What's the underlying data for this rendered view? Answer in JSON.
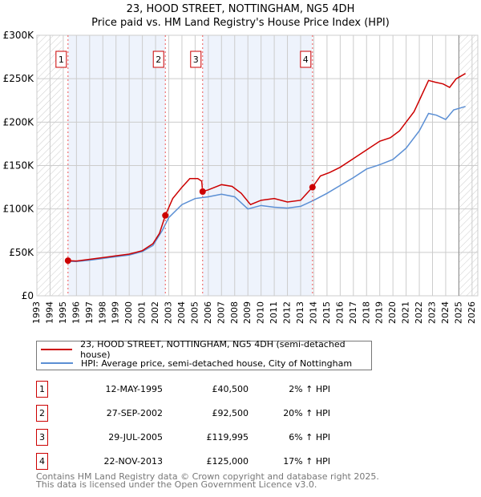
{
  "title": "23, HOOD STREET, NOTTINGHAM, NG5 4DH",
  "subtitle": "Price paid vs. HM Land Registry's House Price Index (HPI)",
  "chart_data": {
    "type": "line",
    "title": "23, HOOD STREET, NOTTINGHAM, NG5 4DH — Price paid vs. HM Land Registry's House Price Index (HPI)",
    "xlim": [
      1993,
      2026.5
    ],
    "ylim": [
      0,
      300000
    ],
    "yticks": [
      {
        "v": 0,
        "label": "£0"
      },
      {
        "v": 50000,
        "label": "£50K"
      },
      {
        "v": 100000,
        "label": "£100K"
      },
      {
        "v": 150000,
        "label": "£150K"
      },
      {
        "v": 200000,
        "label": "£200K"
      },
      {
        "v": 250000,
        "label": "£250K"
      },
      {
        "v": 300000,
        "label": "£300K"
      }
    ],
    "xticks": [
      "1993",
      "1994",
      "1995",
      "1996",
      "1997",
      "1998",
      "1999",
      "2000",
      "2001",
      "2002",
      "2003",
      "2004",
      "2005",
      "2006",
      "2007",
      "2008",
      "2009",
      "2010",
      "2011",
      "2012",
      "2013",
      "2014",
      "2015",
      "2016",
      "2017",
      "2018",
      "2019",
      "2020",
      "2021",
      "2022",
      "2023",
      "2024",
      "2025",
      "2026"
    ],
    "grid": true,
    "series": [
      {
        "name": "23, HOOD STREET, NOTTINGHAM, NG5 4DH (semi-detached house)",
        "color": "#cc0000",
        "x": [
          1995.36,
          1996,
          1997,
          1998,
          1999,
          2000,
          2001,
          2001.8,
          2002.3,
          2002.74,
          2003.3,
          2004,
          2004.6,
          2005.2,
          2005.5,
          2005.57,
          2006,
          2007,
          2007.8,
          2008.5,
          2009.2,
          2010,
          2011,
          2012,
          2013,
          2013.9,
          2014.5,
          2015.2,
          2016,
          2017,
          2018,
          2019,
          2019.8,
          2020.5,
          2021,
          2021.6,
          2022,
          2022.7,
          2023.2,
          2023.8,
          2024.3,
          2024.8,
          2025.5
        ],
        "y": [
          40500,
          40000,
          42000,
          44000,
          46000,
          48000,
          52000,
          60000,
          72000,
          92500,
          112000,
          125000,
          135000,
          135000,
          132000,
          119995,
          122000,
          128000,
          126000,
          118000,
          105000,
          110000,
          112000,
          108000,
          110000,
          125000,
          138000,
          142000,
          148000,
          158000,
          168000,
          178000,
          182000,
          190000,
          200000,
          212000,
          225000,
          248000,
          246000,
          244000,
          240000,
          250000,
          256000
        ]
      },
      {
        "name": "HPI: Average price, semi-detached house, City of Nottingham",
        "color": "#5b8fd4",
        "x": [
          1995.36,
          1996,
          1997,
          1998,
          1999,
          2000,
          2001,
          2001.8,
          2002.5,
          2003,
          2004,
          2005,
          2006,
          2007,
          2008,
          2009,
          2010,
          2011,
          2012,
          2013,
          2014,
          2015,
          2016,
          2017,
          2018,
          2019,
          2020,
          2021,
          2022,
          2022.7,
          2023.3,
          2024,
          2024.6,
          2025.5
        ],
        "y": [
          39700,
          39500,
          41000,
          43000,
          45000,
          47000,
          51000,
          58000,
          75000,
          90000,
          105000,
          112000,
          114000,
          117000,
          114000,
          100000,
          104000,
          102000,
          101000,
          103000,
          110000,
          118000,
          127000,
          136000,
          146000,
          151000,
          157000,
          170000,
          190000,
          210000,
          208000,
          203000,
          214000,
          218000
        ]
      }
    ],
    "sales": [
      {
        "id": "1",
        "x": 1995.36,
        "y": 40500
      },
      {
        "id": "2",
        "x": 2002.74,
        "y": 92500
      },
      {
        "id": "3",
        "x": 2005.57,
        "y": 119995
      },
      {
        "id": "4",
        "x": 2013.9,
        "y": 125000
      }
    ],
    "legend": "bottom"
  },
  "legend": {
    "property": "23, HOOD STREET, NOTTINGHAM, NG5 4DH (semi-detached house)",
    "hpi": "HPI: Average price, semi-detached house, City of Nottingham"
  },
  "sales": [
    {
      "num": "1",
      "date": "12-MAY-1995",
      "price": "£40,500",
      "hpi": "2% ↑ HPI"
    },
    {
      "num": "2",
      "date": "27-SEP-2002",
      "price": "£92,500",
      "hpi": "20% ↑ HPI"
    },
    {
      "num": "3",
      "date": "29-JUL-2005",
      "price": "£119,995",
      "hpi": "6% ↑ HPI"
    },
    {
      "num": "4",
      "date": "22-NOV-2013",
      "price": "£125,000",
      "hpi": "17% ↑ HPI"
    }
  ],
  "footer": {
    "line1": "Contains HM Land Registry data © Crown copyright and database right 2025.",
    "line2": "This data is licensed under the Open Government Licence v3.0."
  }
}
